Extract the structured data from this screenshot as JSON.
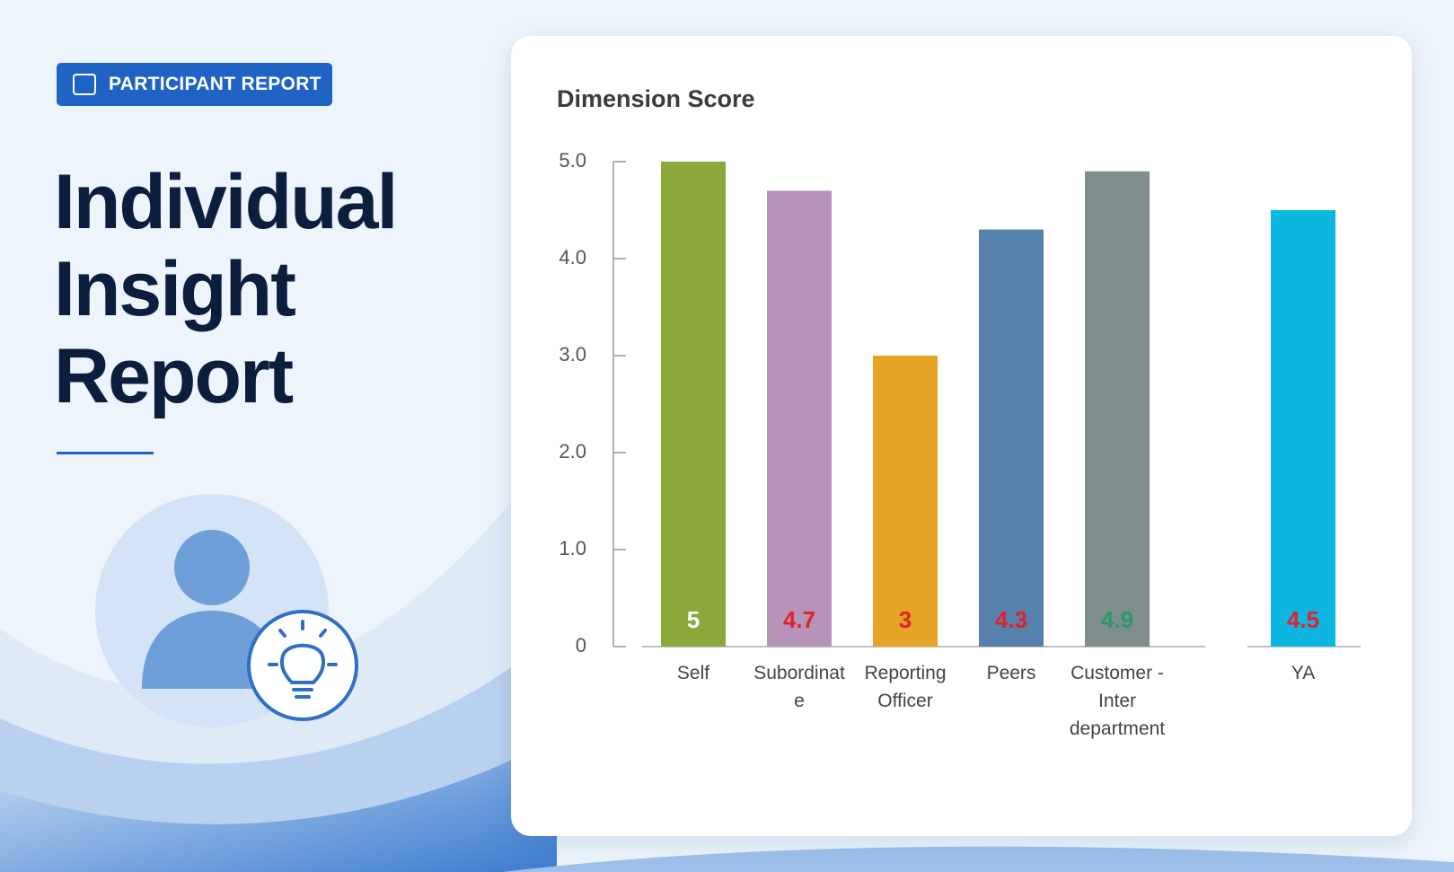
{
  "header": {
    "badge": "PARTICIPANT REPORT",
    "title_lines": [
      "Individual",
      "Insight",
      "Report"
    ]
  },
  "chart_data": {
    "type": "bar",
    "title": "Dimension Score",
    "categories": [
      "Self",
      "Subordinate",
      "Reporting Officer",
      "Peers",
      "Customer - Inter department",
      "YA"
    ],
    "values": [
      5,
      4.7,
      3,
      4.3,
      4.9,
      4.5
    ],
    "colors": [
      "#8ba83b",
      "#b694b9",
      "#e5a425",
      "#5681ad",
      "#808d8d",
      "#0cb6e1"
    ],
    "label_colors": [
      "#ffffff",
      "#e3202b",
      "#e3202b",
      "#e3202b",
      "#2a9a6b",
      "#e3202b"
    ],
    "ylim": [
      0,
      5
    ],
    "yticks": [
      0,
      {
        "value": 1,
        "label": "1.0"
      },
      {
        "value": 2,
        "label": "2.0"
      },
      {
        "value": 3,
        "label": "3.0"
      },
      {
        "value": 4,
        "label": "4.0"
      },
      {
        "value": 5,
        "label": "5.0"
      }
    ]
  }
}
